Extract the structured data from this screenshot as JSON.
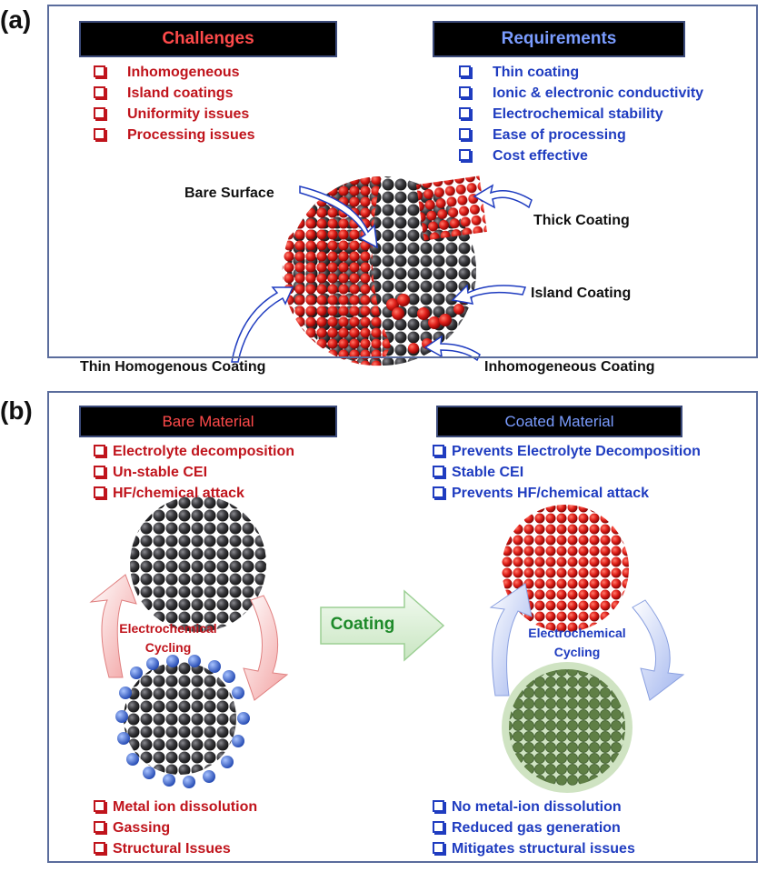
{
  "panel_a": {
    "label": "(a)",
    "challenges": {
      "title": "Challenges",
      "items": [
        "Inhomogeneous",
        "Island coatings",
        "Uniformity issues",
        "Processing issues"
      ]
    },
    "requirements": {
      "title": "Requirements",
      "items": [
        "Thin coating",
        "Ionic & electronic conductivity",
        "Electrochemical stability",
        "Ease of processing",
        "Cost effective"
      ]
    },
    "callouts": {
      "bare_surface": "Bare Surface",
      "thick_coating": "Thick Coating",
      "island_coating": "Island Coating",
      "thin_homogenous": "Thin Homogenous Coating",
      "inhomogeneous": "Inhomogeneous Coating"
    }
  },
  "panel_b": {
    "label": "(b)",
    "bare": {
      "title": "Bare Material",
      "top_items": [
        "Electrolyte decomposition",
        "Un-stable CEI",
        "HF/chemical attack"
      ],
      "bottom_items": [
        "Metal ion dissolution",
        "Gassing",
        "Structural Issues"
      ],
      "cycle_label": [
        "Electrochemical",
        "Cycling"
      ]
    },
    "coated": {
      "title": "Coated Material",
      "top_items": [
        "Prevents Electrolyte Decomposition",
        "Stable CEI",
        "Prevents HF/chemical attack"
      ],
      "bottom_items": [
        "No metal-ion dissolution",
        "Reduced gas generation",
        "Mitigates structural issues"
      ],
      "cycle_label": [
        "Electrochemical",
        "Cycling"
      ]
    },
    "coating_arrow": "Coating"
  },
  "colors": {
    "challenge_red": "#c0141c",
    "requirement_blue": "#1f3cc0",
    "header_bg": "#000000",
    "coating_green": "#1e8a2a",
    "particle_dark": "#3a3a3e",
    "particle_red": "#e0201a",
    "particle_green": "#5f8a4a",
    "dissolved_ion_blue": "#3c6fd0"
  }
}
